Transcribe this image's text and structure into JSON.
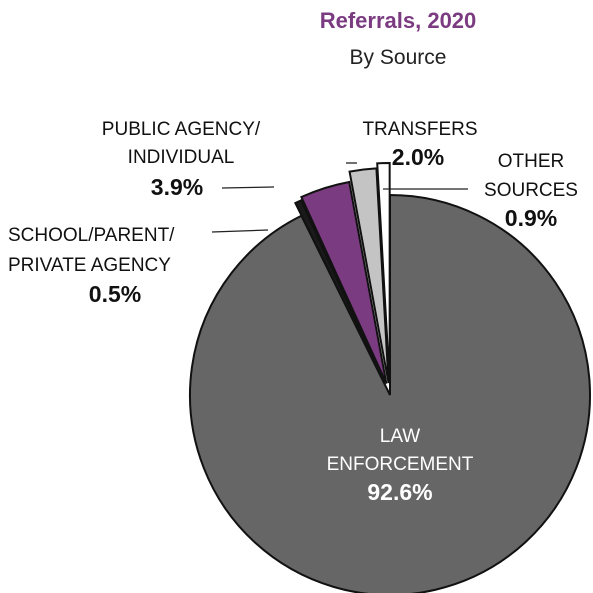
{
  "chart_data": {
    "type": "pie",
    "title": "Referrals, 2020",
    "subtitle": "By Source",
    "slices": [
      {
        "label_lines": [
          "LAW",
          "ENFORCEMENT"
        ],
        "pct_label": "92.6%",
        "value": 92.6,
        "color": "#666666"
      },
      {
        "label_lines": [
          "SCHOOL/PARENT/",
          "PRIVATE AGENCY"
        ],
        "pct_label": "0.5%",
        "value": 0.5,
        "color": "#1a1a1a"
      },
      {
        "label_lines": [
          "PUBLIC AGENCY/",
          "INDIVIDUAL"
        ],
        "pct_label": "3.9%",
        "value": 3.9,
        "color": "#7b3b80"
      },
      {
        "label_lines": [
          "TRANSFERS"
        ],
        "pct_label": "2.0%",
        "value": 2.0,
        "color": "#c4c4c4"
      },
      {
        "label_lines": [
          "OTHER",
          "SOURCES"
        ],
        "pct_label": "0.9%",
        "value": 0.9,
        "color": "#ffffff"
      }
    ],
    "legend": "none",
    "colors": {
      "title": "#7b3b80"
    }
  }
}
